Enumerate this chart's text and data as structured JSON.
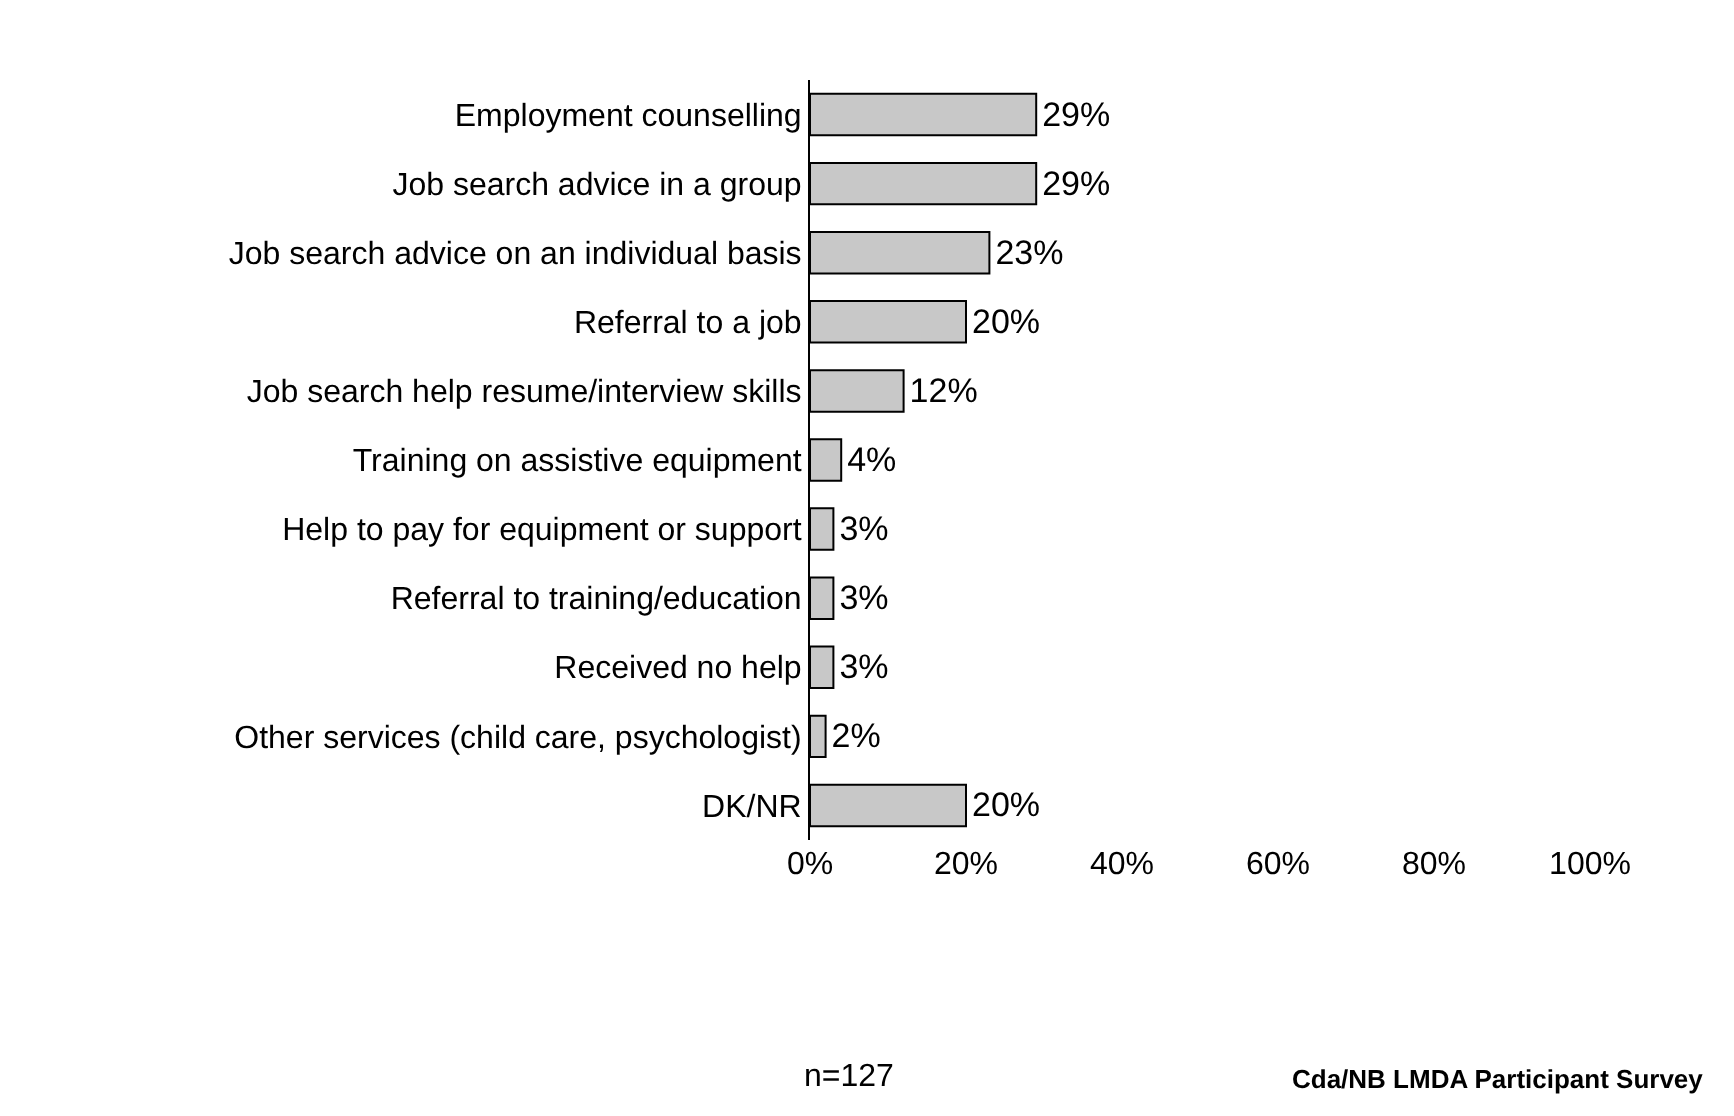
{
  "chart_data": {
    "type": "bar",
    "orientation": "horizontal",
    "categories": [
      "Employment counselling",
      "Job search advice in a group",
      "Job search advice on an individual basis",
      "Referral to a job",
      "Job search help resume/interview skills",
      "Training on assistive equipment",
      "Help to pay for equipment or support",
      "Referral to training/education",
      "Received no help",
      "Other services (child care, psychologist)",
      "DK/NR"
    ],
    "values": [
      29,
      29,
      23,
      20,
      12,
      4,
      3,
      3,
      3,
      2,
      20
    ],
    "value_labels": [
      "29%",
      "29%",
      "23%",
      "20%",
      "12%",
      "4%",
      "3%",
      "3%",
      "3%",
      "2%",
      "20%"
    ],
    "color": "#c8c8c8",
    "xlim": [
      0,
      100
    ],
    "xticks": [
      {
        "value": 0,
        "label": "0%"
      },
      {
        "value": 20,
        "label": "20%"
      },
      {
        "value": 40,
        "label": "40%"
      },
      {
        "value": 60,
        "label": "60%"
      },
      {
        "value": 80,
        "label": "80%"
      },
      {
        "value": 100,
        "label": "100%"
      }
    ],
    "grid": false,
    "legend": false,
    "annotations": [
      "n=127",
      "Cda/NB LMDA Participant Survey"
    ]
  }
}
